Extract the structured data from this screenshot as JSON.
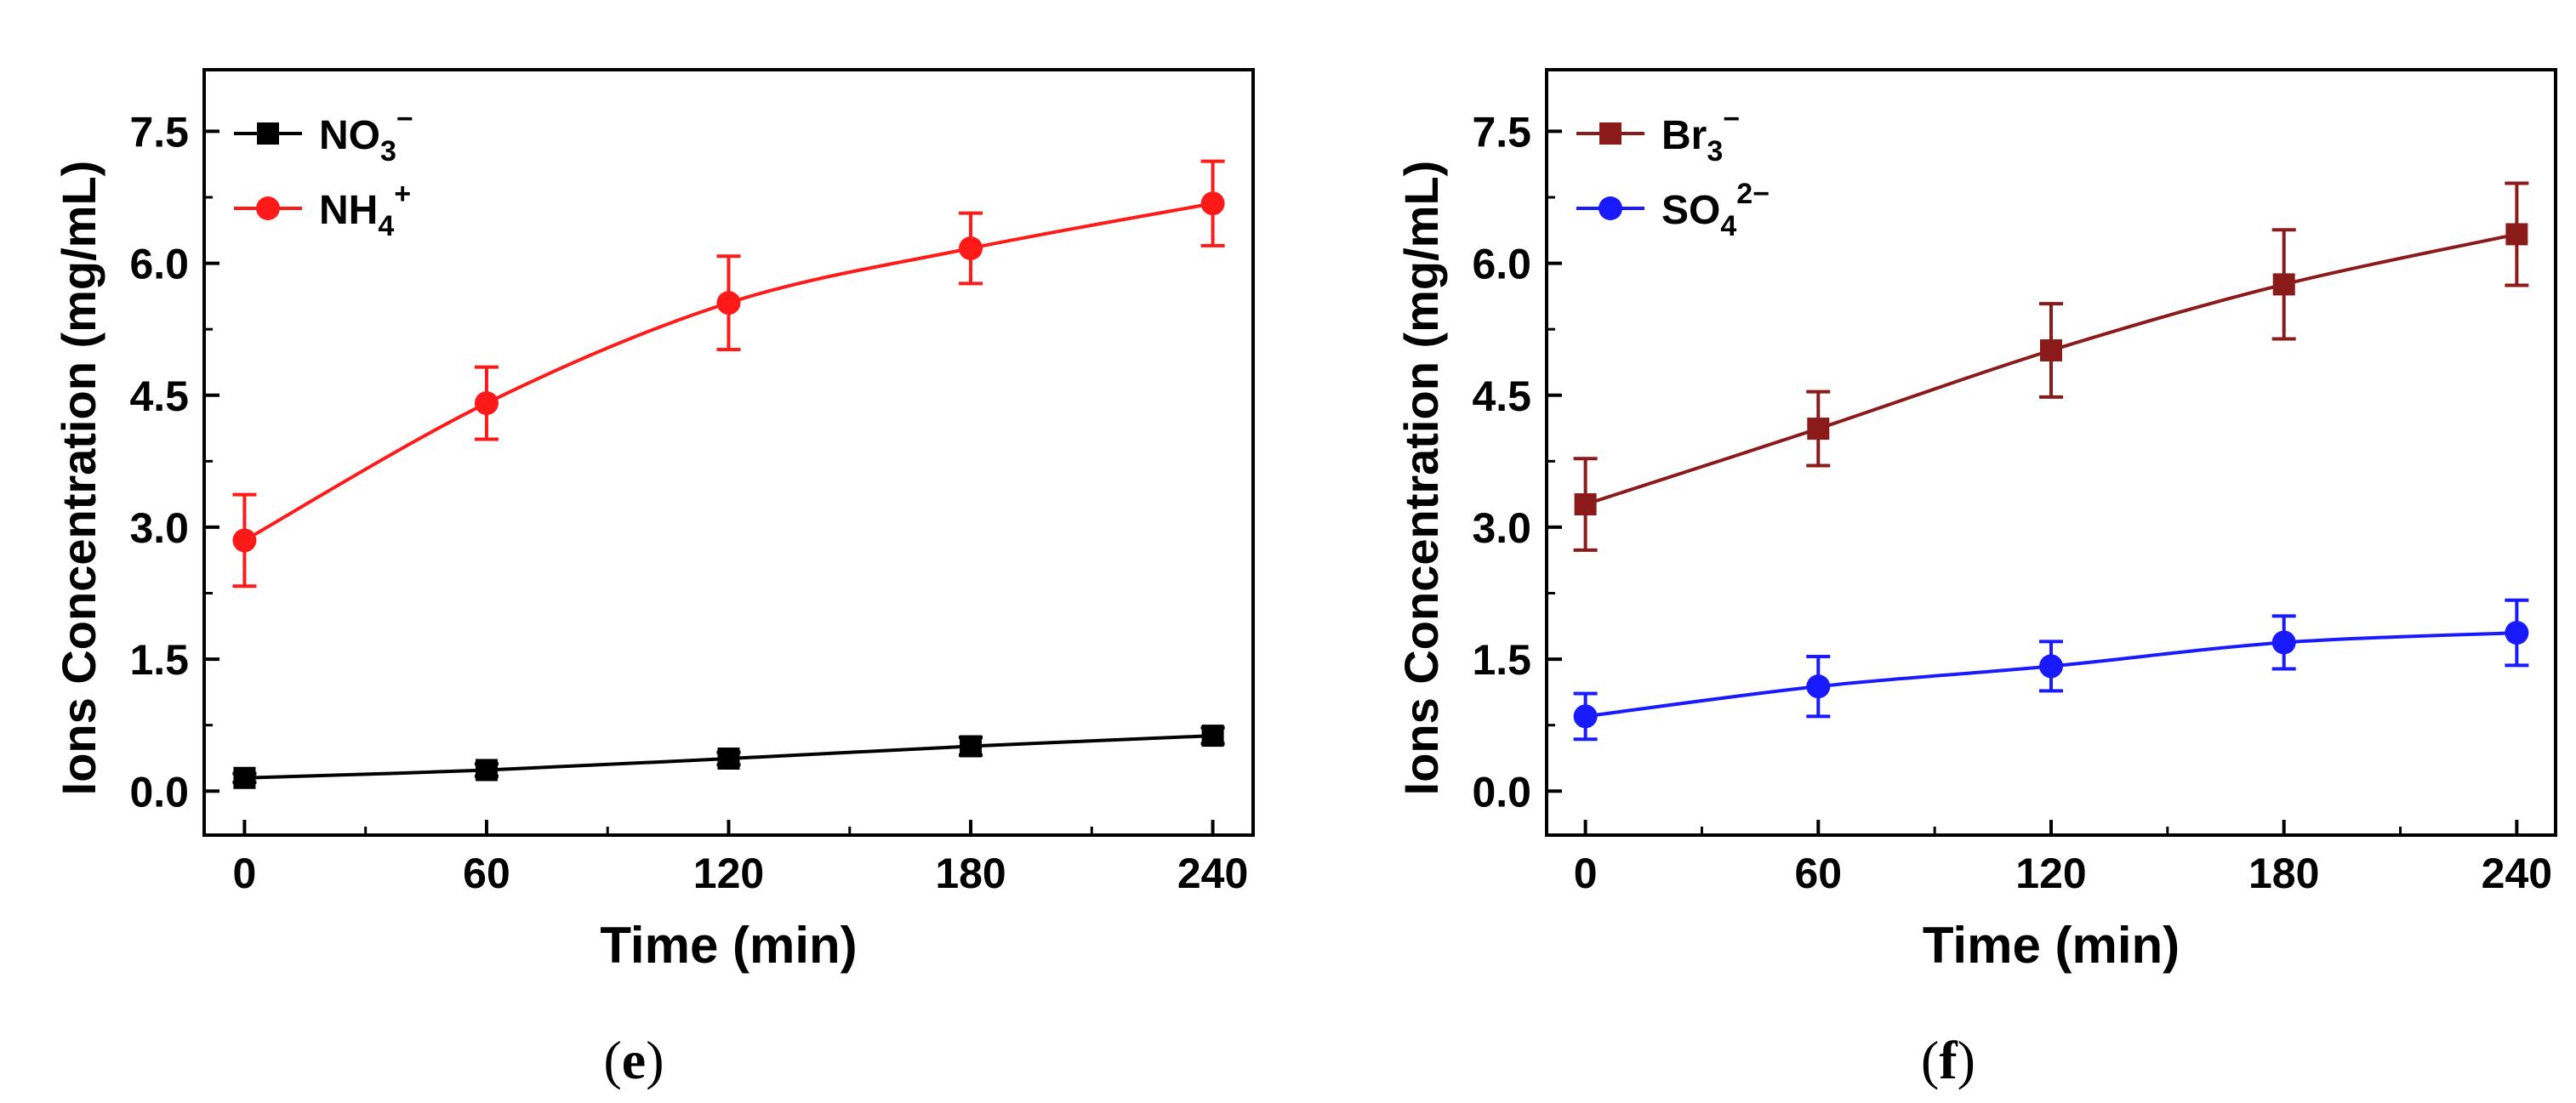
{
  "chart_data": [
    {
      "type": "line",
      "panel_label": "(e)",
      "panel_letter": "e",
      "xlabel": "Time (min)",
      "ylabel": "Ions Concentration (mg/mL)",
      "x": [
        0,
        60,
        120,
        180,
        240
      ],
      "xlim": [
        -10,
        250
      ],
      "ylim": [
        -0.5,
        8.2
      ],
      "xticks": [
        "0",
        "60",
        "120",
        "180",
        "240"
      ],
      "yticks": [
        "0.0",
        "1.5",
        "3.0",
        "4.5",
        "6.0",
        "7.5"
      ],
      "legend_position": "top-left",
      "series": [
        {
          "name": "NO3−",
          "legend_base": "NO",
          "legend_sub": "3",
          "legend_sup": "−",
          "color": "#000000",
          "marker": "square",
          "values": [
            0.15,
            0.24,
            0.37,
            0.51,
            0.63
          ],
          "errors": [
            0.05,
            0.07,
            0.07,
            0.1,
            0.09
          ]
        },
        {
          "name": "NH4+",
          "legend_base": "NH",
          "legend_sub": "4",
          "legend_sup": "+",
          "color": "#ff1a1a",
          "marker": "circle",
          "values": [
            2.85,
            4.41,
            5.55,
            6.17,
            6.68
          ],
          "errors": [
            0.52,
            0.41,
            0.53,
            0.4,
            0.48
          ]
        }
      ]
    },
    {
      "type": "line",
      "panel_label": "(f)",
      "panel_letter": "f",
      "xlabel": "Time (min)",
      "ylabel": "Ions Concentration (mg/mL)",
      "x": [
        0,
        60,
        120,
        180,
        240
      ],
      "xlim": [
        -10,
        250
      ],
      "ylim": [
        -0.5,
        8.2
      ],
      "xticks": [
        "0",
        "60",
        "120",
        "180",
        "240"
      ],
      "yticks": [
        "0.0",
        "1.5",
        "3.0",
        "4.5",
        "6.0",
        "7.5"
      ],
      "legend_position": "top-left",
      "series": [
        {
          "name": "Br3−",
          "legend_base": "Br",
          "legend_sub": "3",
          "legend_sup": "−",
          "color": "#8b1a1a",
          "marker": "square",
          "values": [
            3.26,
            4.12,
            5.01,
            5.76,
            6.33
          ],
          "errors": [
            0.52,
            0.42,
            0.53,
            0.62,
            0.58
          ]
        },
        {
          "name": "SO42−",
          "legend_base": "SO",
          "legend_sub": "4",
          "legend_sup": "2−",
          "color": "#1a1aff",
          "marker": "circle",
          "values": [
            0.85,
            1.19,
            1.42,
            1.69,
            1.8
          ],
          "errors": [
            0.26,
            0.34,
            0.28,
            0.3,
            0.37
          ]
        }
      ]
    }
  ]
}
